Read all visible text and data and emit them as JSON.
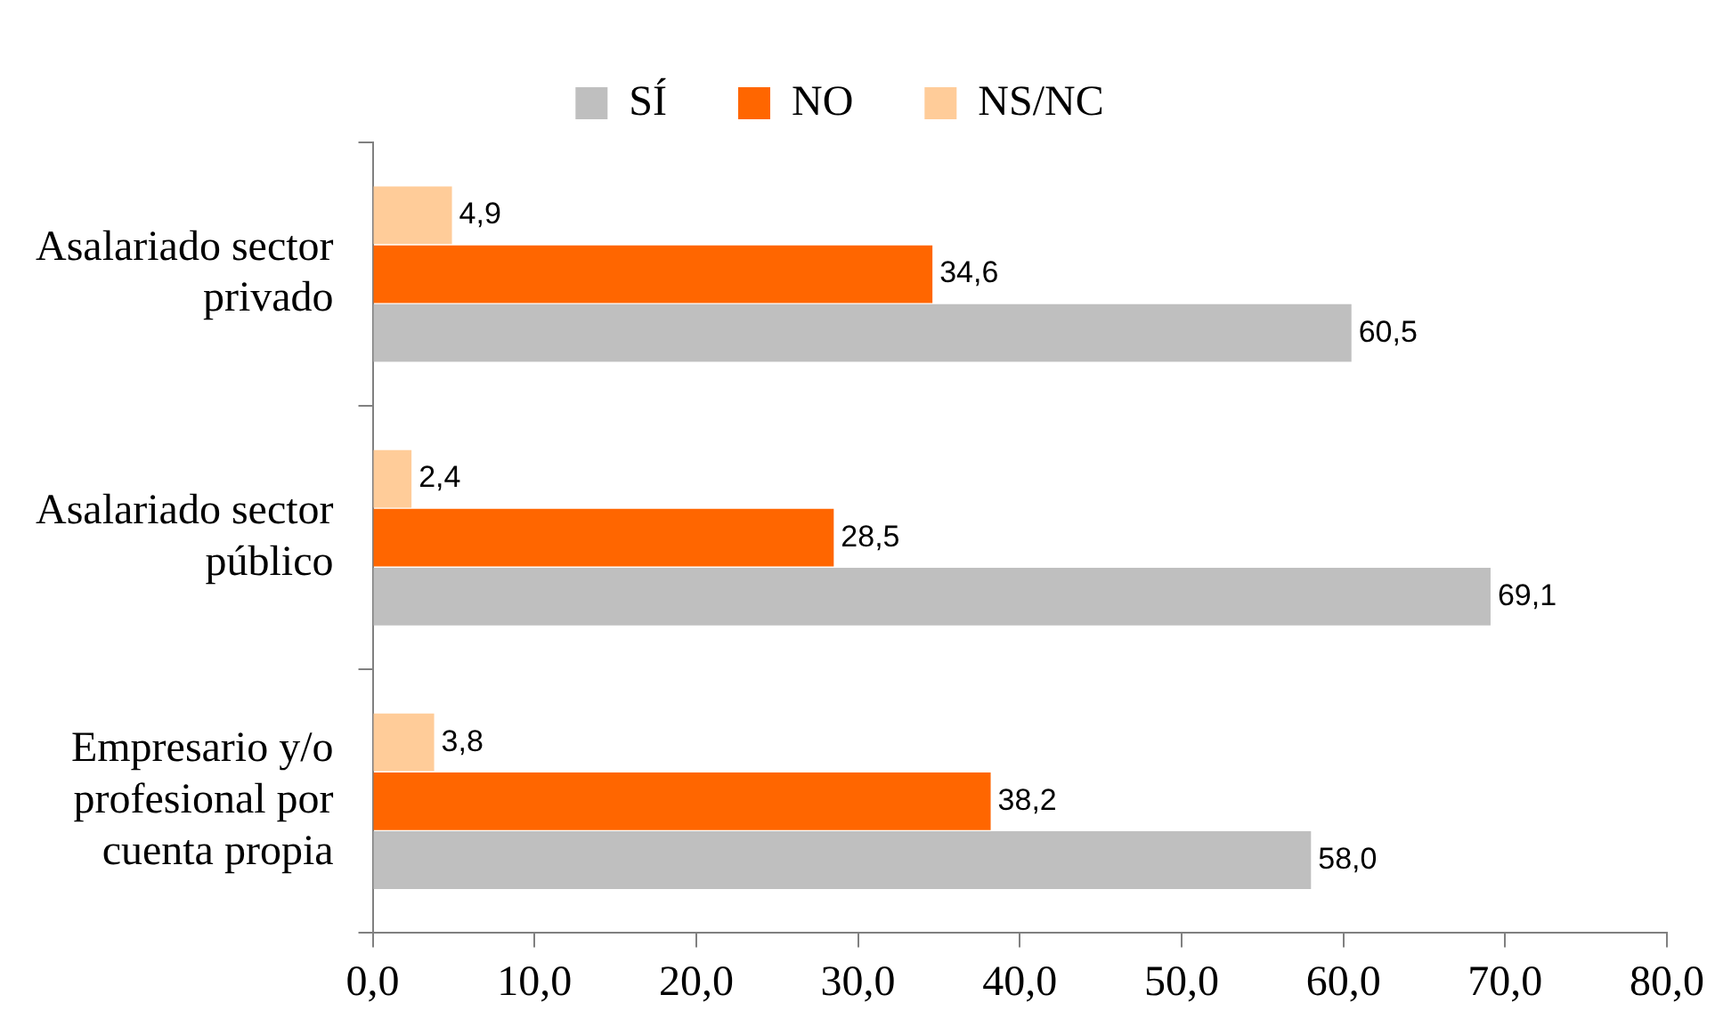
{
  "chart_data": {
    "type": "bar",
    "orientation": "horizontal",
    "categories": [
      "Asalariado sector privado",
      "Asalariado sector público",
      "Empresario y/o profesional por cuenta propia"
    ],
    "series": [
      {
        "name": "SÍ",
        "color": "#bfbfbf",
        "values": [
          60.5,
          69.1,
          58.0
        ],
        "value_labels": [
          "60,5",
          "69,1",
          "58,0"
        ]
      },
      {
        "name": "NO",
        "color": "#ff6600",
        "values": [
          34.6,
          28.5,
          38.2
        ],
        "value_labels": [
          "34,6",
          "28,5",
          "38,2"
        ]
      },
      {
        "name": "NS/NC",
        "color": "#ffcc99",
        "values": [
          4.9,
          2.4,
          3.8
        ],
        "value_labels": [
          "4,9",
          "2,4",
          "3,8"
        ]
      }
    ],
    "xlim": [
      0,
      80
    ],
    "xticks": [
      {
        "value": 0,
        "label": "0,0"
      },
      {
        "value": 10,
        "label": "10,0"
      },
      {
        "value": 20,
        "label": "20,0"
      },
      {
        "value": 30,
        "label": "30,0"
      },
      {
        "value": 40,
        "label": "40,0"
      },
      {
        "value": 50,
        "label": "50,0"
      },
      {
        "value": 60,
        "label": "60,0"
      },
      {
        "value": 70,
        "label": "70,0"
      },
      {
        "value": 80,
        "label": "80,0"
      }
    ],
    "grid": false,
    "legend": "top"
  }
}
